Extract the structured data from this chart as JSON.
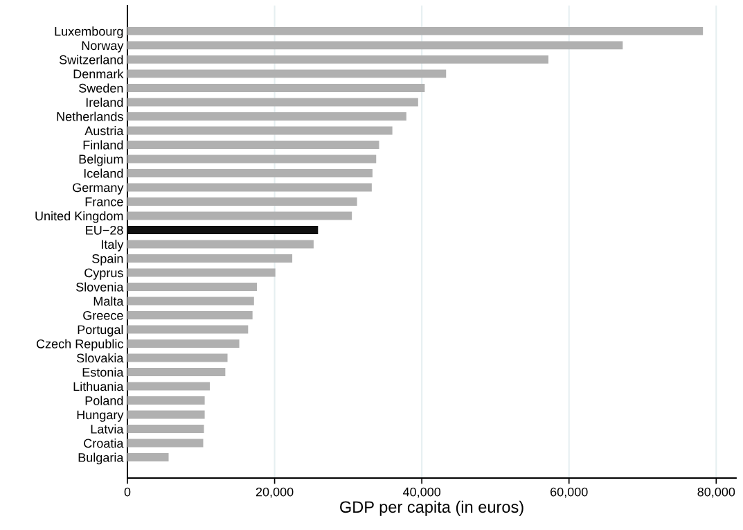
{
  "chart_data": {
    "type": "bar",
    "orientation": "horizontal",
    "xlabel": "GDP per capita (in euros)",
    "categories": [
      "Luxembourg",
      "Norway",
      "Switzerland",
      "Denmark",
      "Sweden",
      "Ireland",
      "Netherlands",
      "Austria",
      "Finland",
      "Belgium",
      "Iceland",
      "Germany",
      "France",
      "United Kingdom",
      "EU−28",
      "Italy",
      "Spain",
      "Cyprus",
      "Slovenia",
      "Malta",
      "Greece",
      "Portugal",
      "Czech Republic",
      "Slovakia",
      "Estonia",
      "Lithuania",
      "Poland",
      "Hungary",
      "Latvia",
      "Croatia",
      "Bulgaria"
    ],
    "values": [
      78200,
      67300,
      57200,
      43300,
      40400,
      39500,
      37900,
      36000,
      34200,
      33800,
      33300,
      33200,
      31200,
      30500,
      25900,
      25300,
      22400,
      20100,
      17600,
      17200,
      17000,
      16400,
      15200,
      13600,
      13300,
      11200,
      10500,
      10500,
      10400,
      10300,
      5600
    ],
    "colors": [
      "#b0b0b0",
      "#b0b0b0",
      "#b0b0b0",
      "#b0b0b0",
      "#b0b0b0",
      "#b0b0b0",
      "#b0b0b0",
      "#b0b0b0",
      "#b0b0b0",
      "#b0b0b0",
      "#b0b0b0",
      "#b0b0b0",
      "#b0b0b0",
      "#b0b0b0",
      "#101010",
      "#b0b0b0",
      "#b0b0b0",
      "#b0b0b0",
      "#b0b0b0",
      "#b0b0b0",
      "#b0b0b0",
      "#b0b0b0",
      "#b0b0b0",
      "#b0b0b0",
      "#b0b0b0",
      "#b0b0b0",
      "#b0b0b0",
      "#b0b0b0",
      "#b0b0b0",
      "#b0b0b0",
      "#b0b0b0"
    ],
    "xlim": [
      0,
      82700
    ],
    "xticks": [
      0,
      {
        "value": 20000,
        "label": "20,000"
      },
      {
        "value": 40000,
        "label": "40,000"
      },
      {
        "value": 60000,
        "label": "60,000"
      },
      {
        "value": 80000,
        "label": "80,000"
      }
    ],
    "grid": "x",
    "legend": false
  }
}
